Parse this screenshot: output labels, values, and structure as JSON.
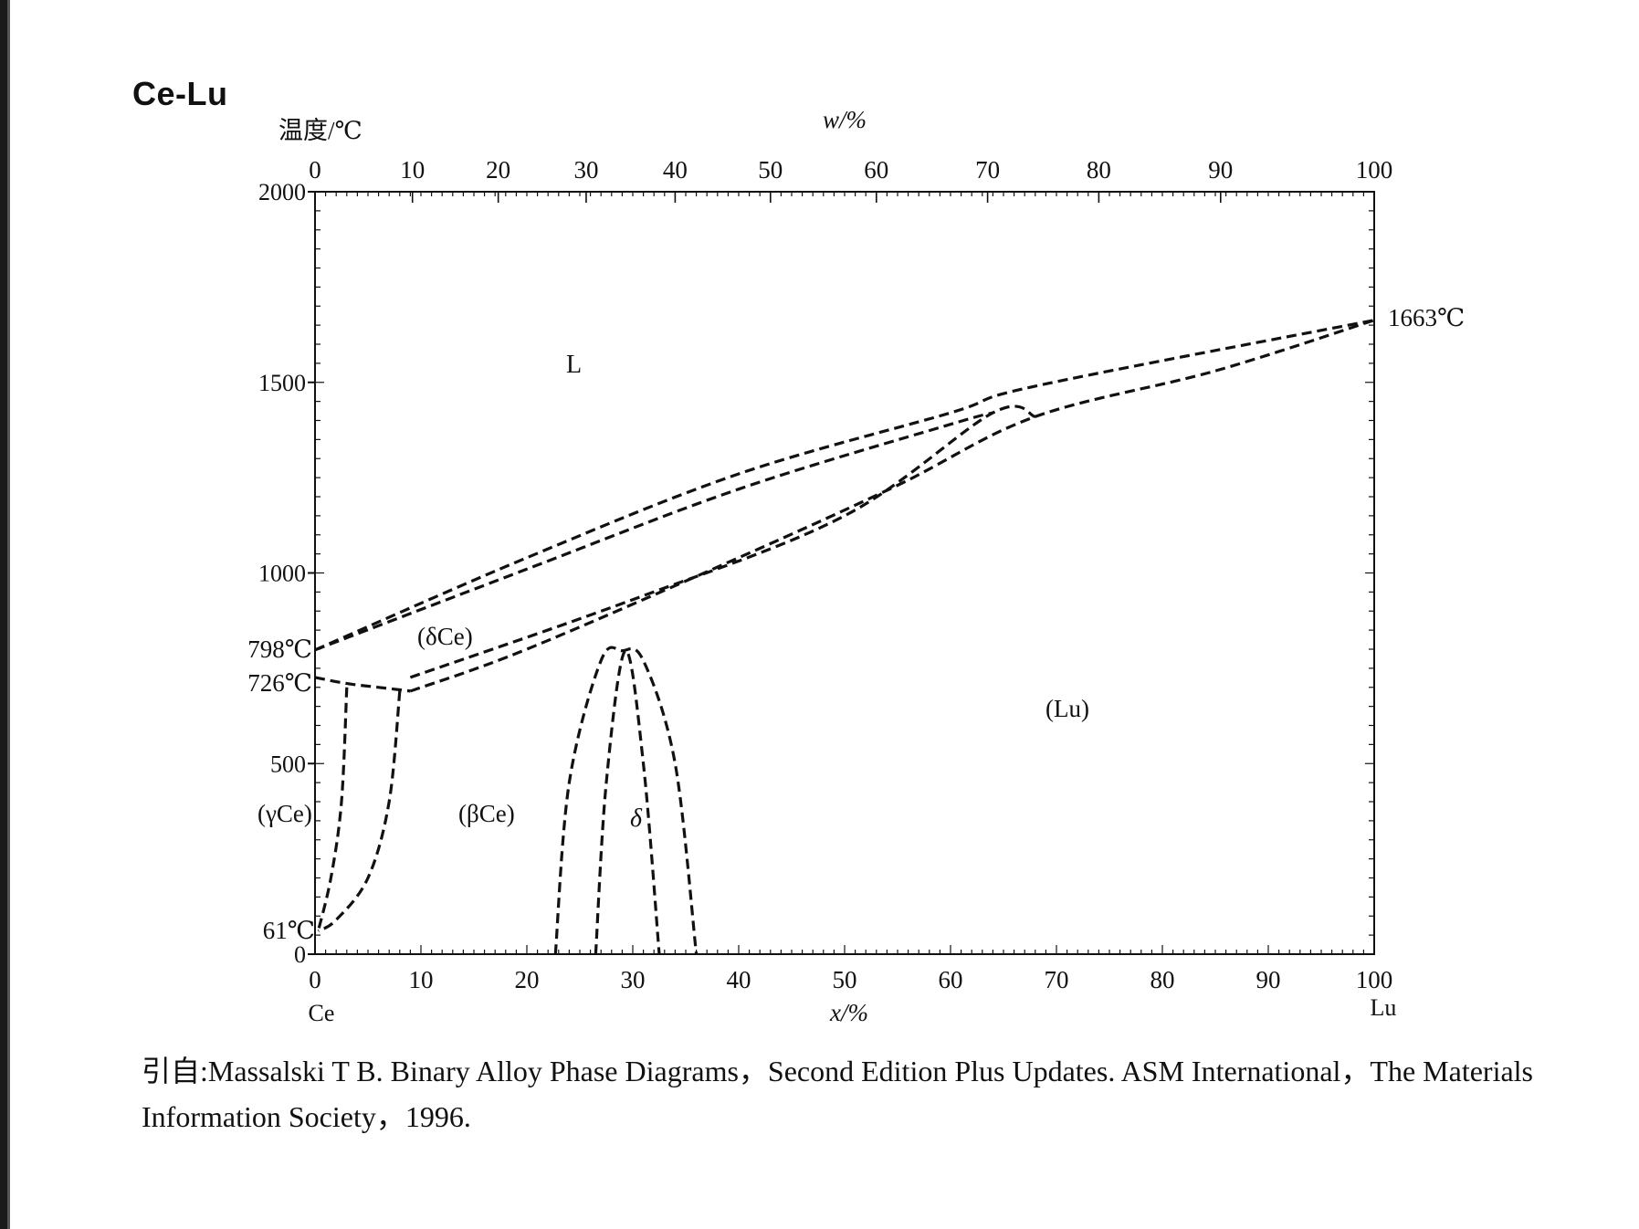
{
  "title": "Ce-Lu",
  "caption": "引自:Massalski T B. Binary Alloy Phase Diagrams，Second Edition Plus Updates. ASM International，The Materials Information Society，1996.",
  "axes": {
    "y_label": "温度/℃",
    "top_label": "w/%",
    "bottom_label": "x/%",
    "left_element": "Ce",
    "right_element": "Lu",
    "y_ticks": [
      "2000",
      "1500",
      "1000",
      "500",
      "0"
    ],
    "top_ticks": [
      "0",
      "10",
      "20",
      "30",
      "40",
      "50",
      "60",
      "70",
      "80",
      "90",
      "100"
    ],
    "bottom_ticks": [
      "0",
      "10",
      "20",
      "30",
      "40",
      "50",
      "60",
      "70",
      "80",
      "90",
      "100"
    ]
  },
  "temperature_marks": {
    "t1663": "1663℃",
    "t798": "798℃",
    "t726": "726℃",
    "t61": "61℃"
  },
  "phase_labels": {
    "liquid": "L",
    "delta_ce": "(δCe)",
    "gamma_ce": "(γCe)",
    "beta_ce": "(βCe)",
    "delta": "δ",
    "lu": "(Lu)"
  },
  "chart_data": {
    "type": "phase-diagram",
    "x_unit": "x/% (Lu)",
    "y_unit": "℃",
    "xlim": [
      0,
      100
    ],
    "ylim": [
      0,
      2000
    ],
    "melting_points": {
      "Ce": 798,
      "Lu": 1663
    },
    "special_temperatures": [
      798,
      726,
      61
    ],
    "boundaries": [
      {
        "name": "liquidus",
        "points": [
          [
            0,
            798
          ],
          [
            20,
            1040
          ],
          [
            40,
            1260
          ],
          [
            60,
            1420
          ],
          [
            68,
            1490
          ],
          [
            100,
            1663
          ]
        ]
      },
      {
        "name": "solidus-deltaCe",
        "points": [
          [
            0,
            798
          ],
          [
            20,
            1010
          ],
          [
            40,
            1220
          ],
          [
            60,
            1390
          ],
          [
            64,
            1420
          ]
        ]
      },
      {
        "name": "deltaCe-Lu-upper",
        "points": [
          [
            9,
            726
          ],
          [
            30,
            930
          ],
          [
            50,
            1150
          ],
          [
            64,
            1420
          ],
          [
            68,
            1410
          ]
        ]
      },
      {
        "name": "deltaCe-Lu-lower",
        "points": [
          [
            9,
            690
          ],
          [
            20,
            800
          ],
          [
            40,
            1040
          ],
          [
            55,
            1230
          ],
          [
            68,
            1410
          ],
          [
            85,
            1530
          ],
          [
            100,
            1663
          ]
        ]
      },
      {
        "name": "gammaCe-726",
        "points": [
          [
            0,
            726
          ],
          [
            3,
            710
          ],
          [
            6,
            700
          ],
          [
            9,
            690
          ]
        ]
      },
      {
        "name": "gammaCe-betaCe-left",
        "points": [
          [
            3,
            700
          ],
          [
            2.5,
            400
          ],
          [
            1.5,
            200
          ],
          [
            0.3,
            61
          ]
        ]
      },
      {
        "name": "gammaCe-betaCe-right",
        "points": [
          [
            8,
            690
          ],
          [
            7,
            400
          ],
          [
            5,
            200
          ],
          [
            2,
            90
          ],
          [
            0.3,
            61
          ]
        ]
      },
      {
        "name": "delta-outer",
        "points": [
          [
            22.7,
            0
          ],
          [
            24,
            450
          ],
          [
            27,
            770
          ],
          [
            29,
            796
          ],
          [
            31,
            770
          ],
          [
            34,
            500
          ],
          [
            36,
            0
          ]
        ]
      },
      {
        "name": "delta-inner",
        "points": [
          [
            26.5,
            0
          ],
          [
            27.5,
            450
          ],
          [
            29.3,
            796
          ],
          [
            31,
            500
          ],
          [
            32.5,
            0
          ]
        ]
      }
    ]
  }
}
